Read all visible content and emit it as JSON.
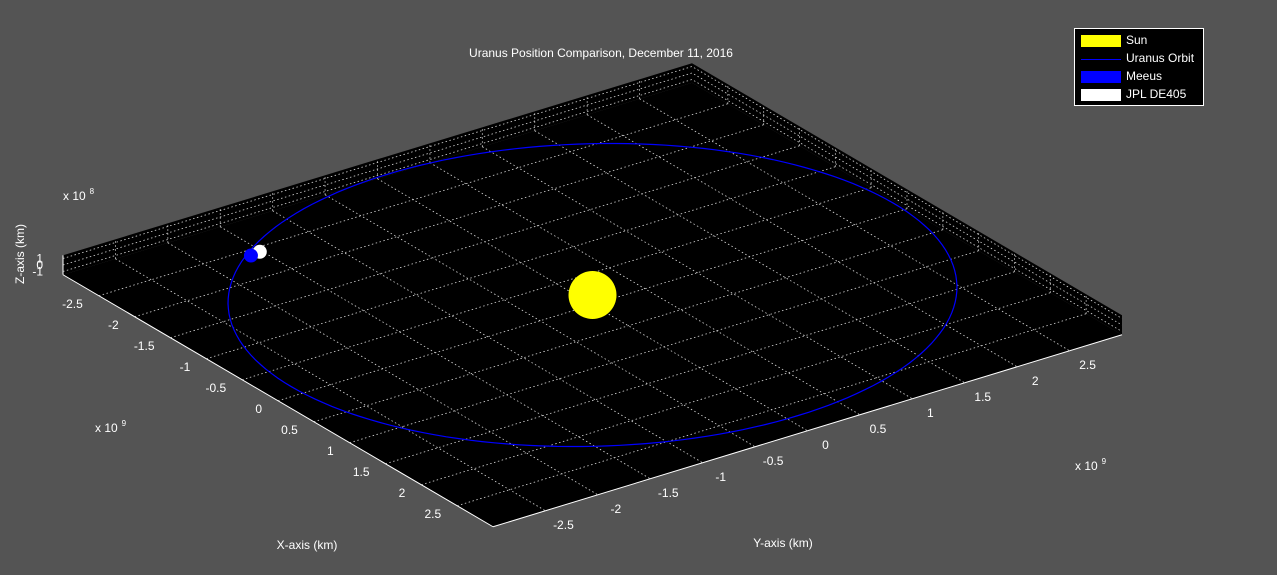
{
  "chart_data": {
    "type": "scatter",
    "title": "Uranus Position Comparison, December 11, 2016",
    "xlabel": "X-axis (km)",
    "ylabel": "Y-axis (km)",
    "zlabel": "Z-axis (km)",
    "x_ticks": [
      "-2.5",
      "-2",
      "-1.5",
      "-1",
      "-0.5",
      "0",
      "0.5",
      "1",
      "1.5",
      "2",
      "2.5"
    ],
    "y_ticks": [
      "-2.5",
      "-2",
      "-1.5",
      "-1",
      "-0.5",
      "0",
      "0.5",
      "1",
      "1.5",
      "2",
      "2.5"
    ],
    "z_ticks": [
      "1",
      "0",
      "-1"
    ],
    "x_multiplier": "x 10",
    "x_exponent": "9",
    "y_multiplier": "x 10",
    "y_exponent": "9",
    "z_multiplier": "x 10",
    "z_exponent": "8",
    "xlim": [
      -3,
      3
    ],
    "ylim": [
      -3,
      3
    ],
    "zlim": [
      -1.5,
      1.5
    ],
    "grid": true,
    "legend_position": "top-right",
    "background_color": "#545454",
    "axes_color": "#000000",
    "series": [
      {
        "name": "Sun",
        "kind": "sphere",
        "color": "#ffff00",
        "x": 0,
        "y": 0,
        "z": 0
      },
      {
        "name": "Uranus Orbit",
        "kind": "line",
        "color": "#0000ff",
        "semi_axis": 2.87
      },
      {
        "name": "Meeus",
        "kind": "sphere",
        "color": "#0000ff",
        "x": -2.25,
        "y": -1.72,
        "z": 0
      },
      {
        "name": "JPL DE405",
        "kind": "sphere",
        "color": "#ffffff",
        "x": -2.27,
        "y": -1.66,
        "z": 0
      }
    ]
  }
}
